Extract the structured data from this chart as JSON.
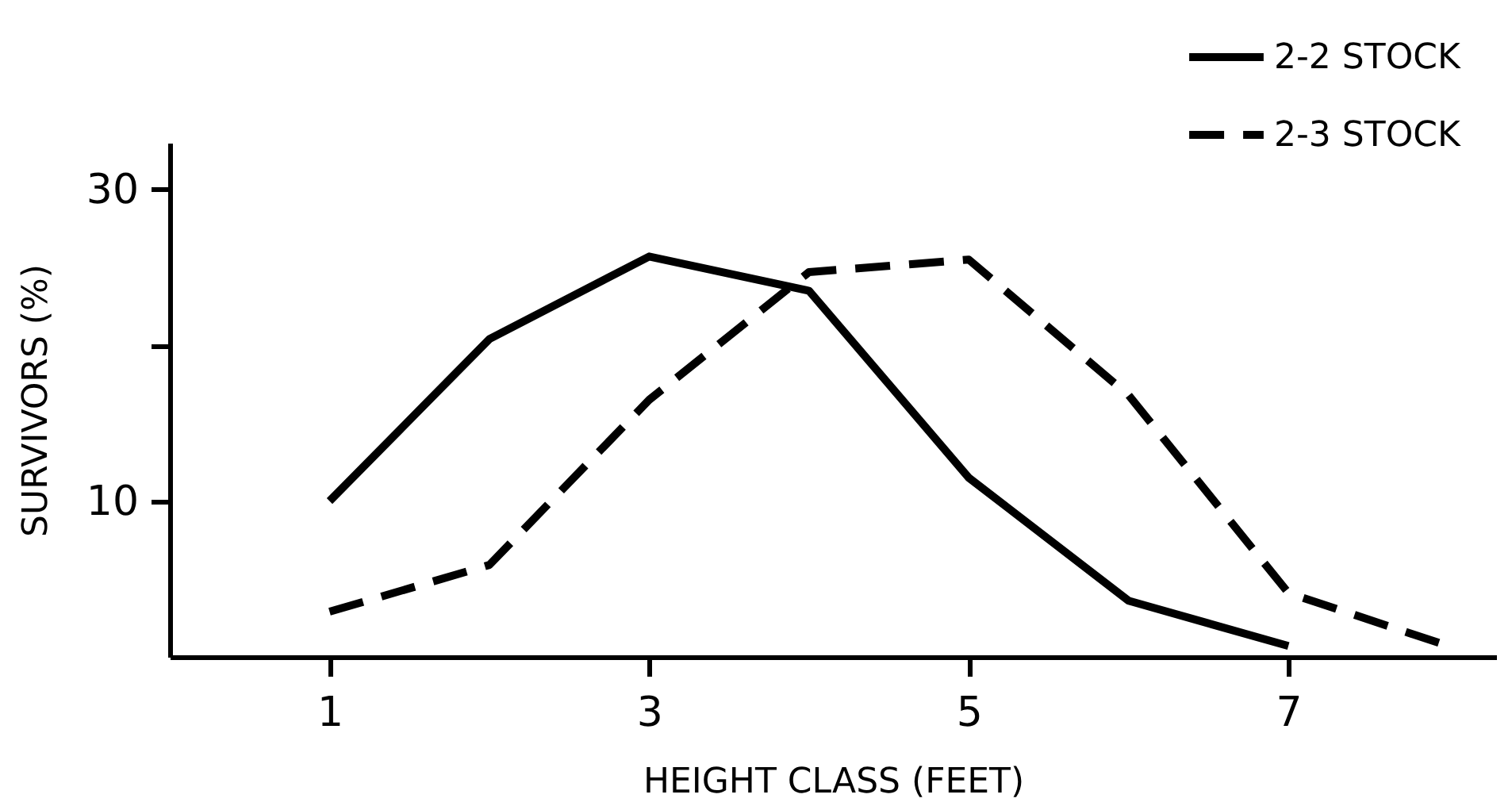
{
  "chart_data": {
    "type": "line",
    "xlabel": "HEIGHT CLASS (FEET)",
    "ylabel": "SURVIVORS (%)",
    "xlim": [
      0,
      8.3
    ],
    "xticks": [
      1,
      3,
      5,
      7
    ],
    "ylim": [
      0,
      33
    ],
    "yticks": [
      10,
      {
        "value": 20,
        "label": null
      },
      30
    ],
    "grid": false,
    "legend": "top right",
    "marker": "none",
    "series": [
      {
        "name": "2-2 STOCK",
        "color": "#000000",
        "line_style": "solid",
        "x": [
          1,
          2,
          3,
          4,
          5,
          6,
          7
        ],
        "values": [
          10,
          20.4,
          25.7,
          23.5,
          11.5,
          3.6,
          0.7
        ]
      },
      {
        "name": "2-3 STOCK",
        "color": "#000000",
        "line_style": "dashed",
        "x": [
          1,
          2,
          3,
          4,
          5,
          6,
          7,
          8
        ],
        "values": [
          2.9,
          5.9,
          16.5,
          24.7,
          25.5,
          16.8,
          4.1,
          0.7
        ]
      }
    ]
  }
}
